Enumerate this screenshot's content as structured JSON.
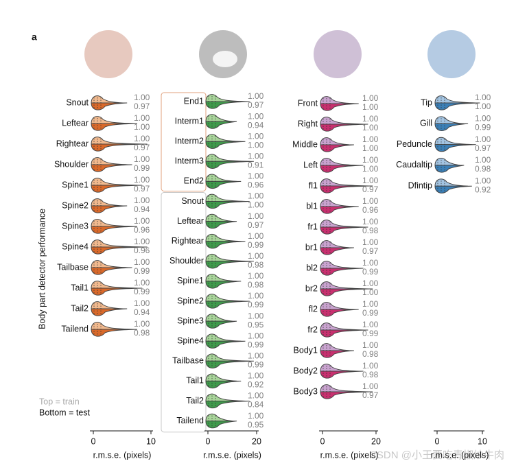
{
  "chart_data": {
    "type": "violin",
    "panel_label": "a",
    "ylabel": "Body part detector performance",
    "legend": [
      "Top = train",
      "Bottom = test"
    ],
    "legend_colors": [
      "#aaaaaa",
      "#111111"
    ],
    "watermark": "CSDN @小王要吃青椒炒牛肉",
    "panels": [
      {
        "color": "#d9692a",
        "light": "#f1b98e",
        "xlabel": "r.m.s.e. (pixels)",
        "xlim": [
          0,
          10
        ],
        "xticks": [
          0,
          10
        ],
        "categories": [
          "Snout",
          "Leftear",
          "Rightear",
          "Shoulder",
          "Spine1",
          "Spine2",
          "Spine3",
          "Spine4",
          "Tailbase",
          "Tail1",
          "Tail2",
          "Tailend"
        ],
        "series": [
          {
            "values": [
              1,
              1,
              1,
              1,
              1,
              1,
              1,
              1,
              1,
              1,
              1,
              1
            ],
            "value_labels": [
              "1.00",
              "1.00",
              "1.00",
              "1.00",
              "1.00",
              "1.00",
              "1.00",
              "1.00",
              "1.00",
              "1.00",
              "1.00",
              "1.00"
            ]
          },
          {
            "values": [
              0.97,
              1,
              0.97,
              0.99,
              0.97,
              0.94,
              0.96,
              0.96,
              0.99,
              0.99,
              0.94,
              0.98
            ],
            "value_labels": [
              "0.97",
              "1.00",
              "0.97",
              "0.99",
              "0.97",
              "0.94",
              "0.96",
              "0.96",
              "0.99",
              "0.99",
              "0.94",
              "0.98"
            ]
          }
        ]
      },
      {
        "color": "#3f9a4b",
        "light": "#a8d59a",
        "xlabel": "r.m.s.e. (pixels)",
        "xlim": [
          0,
          20
        ],
        "xticks": [
          0,
          20
        ],
        "categories": [
          "End1",
          "Interm1",
          "Interm2",
          "Interm3",
          "End2",
          "Snout",
          "Leftear",
          "Rightear",
          "Shoulder",
          "Spine1",
          "Spine2",
          "Spine3",
          "Spine4",
          "Tailbase",
          "Tail1",
          "Tail2",
          "Tailend"
        ],
        "series": [
          {
            "values": [
              1,
              1,
              1,
              1,
              1,
              1,
              1,
              1,
              1,
              1,
              1,
              1,
              1,
              1,
              1,
              1,
              1
            ],
            "value_labels": [
              "1.00",
              "1.00",
              "1.00",
              "1.00",
              "1.00",
              "1.00",
              "1.00",
              "1.00",
              "1.00",
              "1.00",
              "1.00",
              "1.00",
              "1.00",
              "1.00",
              "1.00",
              "1.00",
              "1.00"
            ]
          },
          {
            "values": [
              0.97,
              0.94,
              1,
              0.91,
              0.96,
              1,
              0.97,
              0.99,
              0.98,
              0.98,
              0.99,
              0.95,
              0.99,
              0.99,
              0.92,
              0.84,
              0.95
            ],
            "value_labels": [
              "0.97",
              "0.94",
              "1.00",
              "0.91",
              "0.96",
              "1.00",
              "0.97",
              "0.99",
              "0.98",
              "0.98",
              "0.99",
              "0.95",
              "0.99",
              "0.99",
              "0.92",
              "0.84",
              "0.95"
            ]
          }
        ]
      },
      {
        "color": "#c8306f",
        "light": "#c9a3cf",
        "xlabel": "r.m.s.e. (pixels)",
        "xlim": [
          0,
          20
        ],
        "xticks": [
          0,
          20
        ],
        "categories": [
          "Front",
          "Right",
          "Middle",
          "Left",
          "fl1",
          "bl1",
          "fr1",
          "br1",
          "bl2",
          "br2",
          "fl2",
          "fr2",
          "Body1",
          "Body2",
          "Body3"
        ],
        "series": [
          {
            "values": [
              1,
              1,
              1,
              1,
              1,
              1,
              1,
              1,
              1,
              1,
              1,
              1,
              1,
              1,
              1
            ],
            "value_labels": [
              "1.00",
              "1.00",
              "1.00",
              "1.00",
              "1.00",
              "1.00",
              "1.00",
              "1.00",
              "1.00",
              "1.00",
              "1.00",
              "1.00",
              "1.00",
              "1.00",
              "1.00"
            ]
          },
          {
            "values": [
              1,
              1,
              1,
              1,
              0.97,
              0.96,
              0.98,
              0.97,
              0.99,
              1,
              0.99,
              0.99,
              0.98,
              0.98,
              0.97
            ],
            "value_labels": [
              "1.00",
              "1.00",
              "1.00",
              "1.00",
              "0.97",
              "0.96",
              "0.98",
              "0.97",
              "0.99",
              "1.00",
              "0.99",
              "0.99",
              "0.98",
              "0.98",
              "0.97"
            ]
          }
        ]
      },
      {
        "color": "#3b7fb6",
        "light": "#a3c4e2",
        "xlabel": "r.m.s.e. (pixels)",
        "xlim": [
          0,
          10
        ],
        "xticks": [
          0,
          10
        ],
        "categories": [
          "Tip",
          "Gill",
          "Peduncle",
          "Caudaltip",
          "Dfintip"
        ],
        "series": [
          {
            "values": [
              1,
              1,
              1,
              1,
              1
            ],
            "value_labels": [
              "1.00",
              "1.00",
              "1.00",
              "1.00",
              "1.00"
            ]
          },
          {
            "values": [
              1,
              0.99,
              0.97,
              0.98,
              0.92
            ],
            "value_labels": [
              "1.00",
              "0.99",
              "0.97",
              "0.98",
              "0.92"
            ]
          }
        ]
      }
    ]
  }
}
